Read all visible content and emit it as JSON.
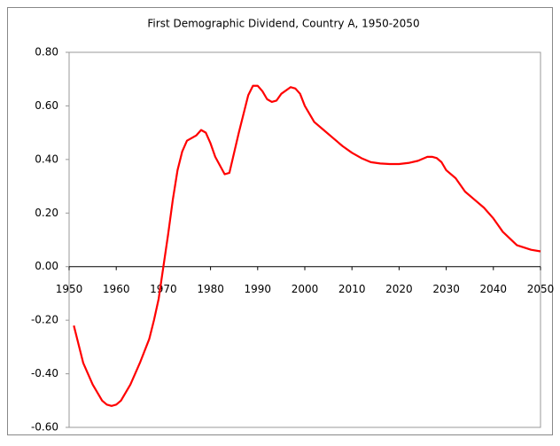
{
  "chart_data": {
    "type": "line",
    "title": "First Demographic Dividend, Country A, 1950-2050",
    "x": [
      1951,
      1953,
      1955,
      1957,
      1958,
      1959,
      1960,
      1961,
      1963,
      1965,
      1967,
      1968,
      1969,
      1970,
      1971,
      1972,
      1973,
      1974,
      1975,
      1977,
      1978,
      1979,
      1980,
      1981,
      1983,
      1984,
      1986,
      1988,
      1989,
      1990,
      1991,
      1992,
      1993,
      1994,
      1995,
      1997,
      1998,
      1999,
      2000,
      2002,
      2004,
      2006,
      2008,
      2010,
      2012,
      2014,
      2016,
      2018,
      2020,
      2022,
      2024,
      2026,
      2027,
      2028,
      2029,
      2030,
      2032,
      2034,
      2036,
      2038,
      2040,
      2042,
      2045,
      2048,
      2050
    ],
    "values": [
      -0.22,
      -0.36,
      -0.44,
      -0.5,
      -0.515,
      -0.52,
      -0.515,
      -0.5,
      -0.44,
      -0.36,
      -0.27,
      -0.2,
      -0.12,
      0,
      0.12,
      0.25,
      0.36,
      0.43,
      0.47,
      0.49,
      0.51,
      0.5,
      0.46,
      0.41,
      0.345,
      0.35,
      0.5,
      0.64,
      0.675,
      0.675,
      0.655,
      0.625,
      0.615,
      0.62,
      0.645,
      0.67,
      0.665,
      0.645,
      0.6,
      0.54,
      0.51,
      0.48,
      0.45,
      0.425,
      0.405,
      0.39,
      0.385,
      0.383,
      0.383,
      0.387,
      0.395,
      0.41,
      0.41,
      0.405,
      0.39,
      0.36,
      0.33,
      0.28,
      0.25,
      0.22,
      0.18,
      0.13,
      0.08,
      0.063,
      0.057
    ],
    "color": "#ff0000",
    "xlim": [
      1950,
      2050
    ],
    "xticks": [
      1950,
      1960,
      1970,
      1980,
      1990,
      2000,
      2010,
      2020,
      2030,
      2040,
      2050
    ],
    "ylim": [
      -0.6,
      0.8
    ],
    "yticks": [
      {
        "value": 0.8,
        "label": "0.80"
      },
      {
        "value": 0.6,
        "label": "0.60"
      },
      {
        "value": 0.4,
        "label": "0.40"
      },
      {
        "value": 0.2,
        "label": "0.20"
      },
      {
        "value": 0,
        "label": "0.00"
      },
      {
        "value": -0.2,
        "label": "-0.20"
      },
      {
        "value": -0.4,
        "label": "-0.40"
      },
      {
        "value": -0.6,
        "label": "-0.60"
      }
    ]
  }
}
